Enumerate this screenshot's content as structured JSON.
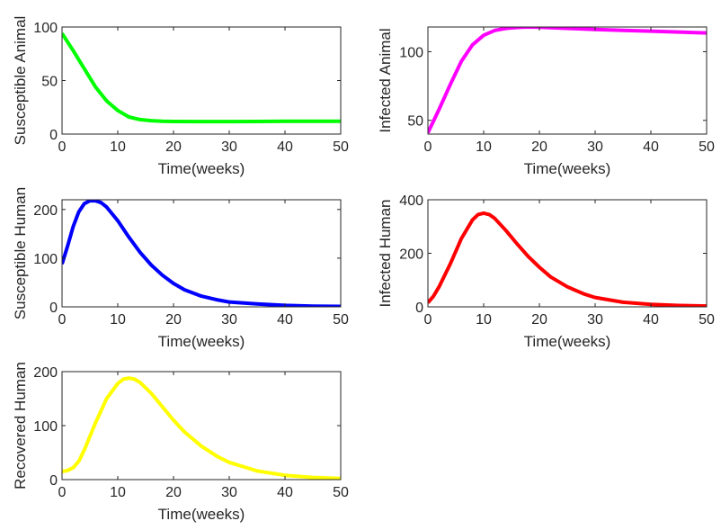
{
  "chart_data": [
    {
      "type": "line",
      "xlabel": "Time(weeks)",
      "ylabel": "Susceptible Animal",
      "xlim": [
        0,
        50
      ],
      "ylim": [
        0,
        100
      ],
      "xticks": [
        0,
        10,
        20,
        30,
        40,
        50
      ],
      "yticks": [
        0,
        50,
        100
      ],
      "series": [
        {
          "color": "#00ff00",
          "x": [
            0,
            2,
            4,
            6,
            8,
            10,
            12,
            14,
            16,
            18,
            20,
            25,
            30,
            35,
            40,
            45,
            50
          ],
          "values": [
            94,
            78,
            61,
            44,
            31,
            22,
            16,
            13.5,
            12.5,
            12,
            11.8,
            11.7,
            11.7,
            11.8,
            11.9,
            12,
            12
          ]
        }
      ]
    },
    {
      "type": "line",
      "xlabel": "Time(weeks)",
      "ylabel": "Infected Animal",
      "xlim": [
        0,
        50
      ],
      "ylim": [
        40,
        118
      ],
      "xticks": [
        0,
        10,
        20,
        30,
        40,
        50
      ],
      "yticks": [
        50,
        100
      ],
      "series": [
        {
          "color": "#ff00ff",
          "x": [
            0,
            2,
            4,
            6,
            8,
            10,
            12,
            14,
            16,
            18,
            20,
            25,
            30,
            35,
            40,
            45,
            50
          ],
          "values": [
            41,
            58,
            76,
            93,
            105,
            112,
            115.5,
            117,
            117.7,
            118,
            117.8,
            117,
            116.2,
            115.6,
            115,
            114.3,
            113.7
          ]
        }
      ]
    },
    {
      "type": "line",
      "xlabel": "Time(weeks)",
      "ylabel": "Susceptible Human",
      "xlim": [
        0,
        50
      ],
      "ylim": [
        0,
        220
      ],
      "xticks": [
        0,
        10,
        20,
        30,
        40,
        50
      ],
      "yticks": [
        0,
        100,
        200
      ],
      "series": [
        {
          "color": "#0000ff",
          "x": [
            0,
            1,
            2,
            3,
            4,
            5,
            6,
            7,
            8,
            10,
            12,
            14,
            16,
            18,
            20,
            22,
            25,
            28,
            30,
            35,
            40,
            45,
            50
          ],
          "values": [
            88,
            125,
            165,
            195,
            212,
            218,
            218,
            214,
            205,
            177,
            143,
            112,
            86,
            65,
            48,
            35,
            22,
            14,
            10,
            6,
            3,
            1.5,
            1
          ]
        }
      ]
    },
    {
      "type": "line",
      "xlabel": "Time(weeks)",
      "ylabel": "Infected Human",
      "xlim": [
        0,
        50
      ],
      "ylim": [
        0,
        400
      ],
      "xticks": [
        0,
        10,
        20,
        30,
        40,
        50
      ],
      "yticks": [
        0,
        200,
        400
      ],
      "series": [
        {
          "color": "#ff0000",
          "x": [
            0,
            1,
            2,
            4,
            6,
            8,
            9,
            10,
            11,
            12,
            14,
            16,
            18,
            20,
            22,
            25,
            28,
            30,
            35,
            40,
            45,
            50
          ],
          "values": [
            15,
            40,
            75,
            160,
            255,
            325,
            345,
            350,
            345,
            330,
            285,
            235,
            188,
            148,
            112,
            75,
            48,
            35,
            17,
            9,
            5,
            3
          ]
        }
      ]
    },
    {
      "type": "line",
      "xlabel": "Time(weeks)",
      "ylabel": "Recovered Human",
      "xlim": [
        0,
        50
      ],
      "ylim": [
        0,
        200
      ],
      "xticks": [
        0,
        10,
        20,
        30,
        40,
        50
      ],
      "yticks": [
        0,
        100,
        200
      ],
      "series": [
        {
          "color": "#ffff00",
          "x": [
            0,
            1,
            2,
            3,
            4,
            6,
            8,
            10,
            11,
            12,
            13,
            14,
            16,
            18,
            20,
            22,
            25,
            28,
            30,
            35,
            40,
            45,
            50
          ],
          "values": [
            15,
            17,
            22,
            34,
            55,
            105,
            150,
            178,
            186,
            188,
            186,
            180,
            160,
            135,
            110,
            88,
            62,
            42,
            32,
            16,
            8,
            4,
            2
          ]
        }
      ]
    }
  ]
}
